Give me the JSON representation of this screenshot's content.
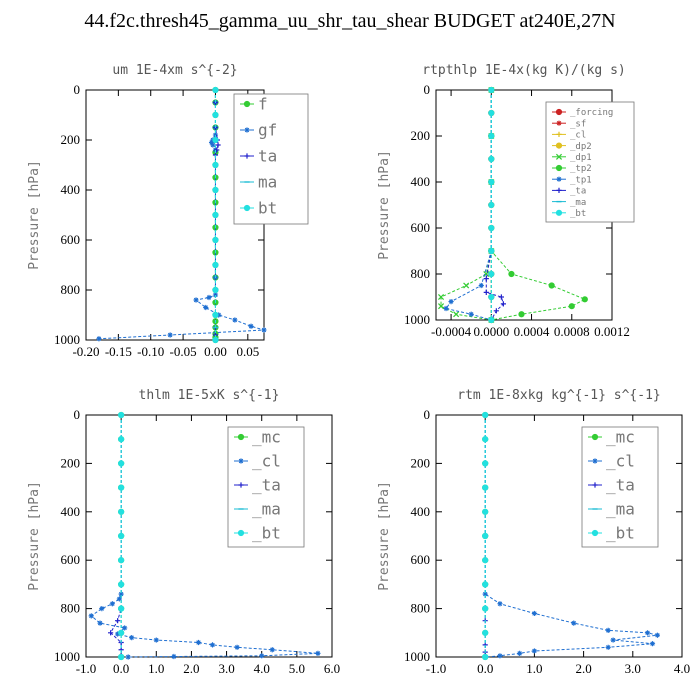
{
  "title": "44.f2c.thresh45_gamma_uu_shr_tau_shear  BUDGET at240E,27N",
  "chart_data": [
    {
      "type": "line",
      "title": "um  1E-4xm s^{-2}",
      "ylabel": "Pressure [hPa]",
      "xlim": [
        -0.2,
        0.075
      ],
      "ylim": [
        1000,
        0
      ],
      "xticks": [
        -0.2,
        -0.15,
        -0.1,
        -0.05,
        0.0,
        0.05
      ],
      "xtick_labels": [
        "-0.20",
        "-0.15",
        "-0.10",
        "-0.05",
        "0.00",
        "0.05"
      ],
      "yticks": [
        0,
        200,
        400,
        600,
        800,
        1000
      ],
      "grid": false,
      "legend_position": "top-right",
      "series": [
        {
          "name": "f",
          "color": "#33cc33",
          "marker": "o",
          "x": [
            0,
            0,
            0,
            0,
            0,
            0,
            0,
            0,
            0,
            0,
            0,
            0,
            0,
            0,
            0,
            0,
            0,
            0,
            0,
            0,
            0,
            0,
            0,
            0
          ],
          "y": [
            0,
            50,
            100,
            150,
            200,
            250,
            300,
            350,
            400,
            450,
            500,
            550,
            600,
            650,
            700,
            750,
            800,
            850,
            900,
            925,
            950,
            975,
            990,
            1000
          ]
        },
        {
          "name": "gf",
          "color": "#1f6fd1",
          "marker": "*",
          "x": [
            0,
            0,
            0,
            0,
            0,
            -0.004,
            -0.006,
            -0.004,
            0,
            0,
            0,
            0,
            0,
            0,
            0,
            0,
            0,
            -0.01,
            -0.03,
            -0.015,
            0.005,
            0.03,
            0.055,
            0.075,
            -0.07,
            -0.18
          ],
          "y": [
            0,
            50,
            100,
            150,
            180,
            200,
            210,
            220,
            240,
            300,
            400,
            500,
            600,
            700,
            750,
            800,
            820,
            830,
            840,
            870,
            900,
            920,
            945,
            960,
            980,
            995
          ]
        },
        {
          "name": "ta",
          "color": "#2222cc",
          "marker": "+",
          "x": [
            0,
            0,
            0,
            0,
            0.003,
            0.004,
            0.002,
            0,
            0,
            0,
            0,
            0,
            0,
            0,
            0,
            0,
            0,
            0
          ],
          "y": [
            0,
            50,
            100,
            150,
            200,
            220,
            240,
            260,
            300,
            400,
            500,
            600,
            700,
            800,
            900,
            950,
            980,
            1000
          ]
        },
        {
          "name": "ma",
          "color": "#1abcd4",
          "marker": "-",
          "x": [
            0,
            0,
            0,
            0,
            0,
            0,
            0,
            0,
            0,
            0,
            0,
            0
          ],
          "y": [
            0,
            100,
            200,
            300,
            400,
            500,
            600,
            700,
            800,
            900,
            950,
            1000
          ]
        },
        {
          "name": "bt",
          "color": "#22e0e0",
          "marker": "o",
          "x": [
            0,
            0,
            0,
            0,
            0,
            0,
            0,
            0,
            0,
            0,
            0
          ],
          "y": [
            0,
            100,
            200,
            300,
            400,
            500,
            600,
            700,
            800,
            900,
            1000
          ]
        }
      ]
    },
    {
      "type": "line",
      "title": "rtpthlp  1E-4x(kg K)/(kg s)",
      "ylabel": "Pressure [hPa]",
      "xlim": [
        -0.00055,
        0.0012
      ],
      "ylim": [
        1000,
        0
      ],
      "xticks": [
        -0.0004,
        0.0,
        0.0004,
        0.0008,
        0.0012
      ],
      "xtick_labels": [
        "-0.0004",
        "0.0000",
        "0.0004",
        "0.0008",
        "0.0012"
      ],
      "yticks": [
        0,
        200,
        400,
        600,
        800,
        1000
      ],
      "grid": false,
      "legend_position": "top-right",
      "series": [
        {
          "name": "_forcing",
          "color": "#cc2222",
          "marker": "o",
          "x": [
            0,
            0,
            0,
            0,
            0,
            0,
            0,
            0,
            0,
            0,
            0
          ],
          "y": [
            0,
            100,
            200,
            300,
            400,
            500,
            600,
            700,
            800,
            900,
            1000
          ]
        },
        {
          "name": "_sf",
          "color": "#cc2222",
          "marker": "*",
          "x": [
            0,
            0,
            0,
            0,
            0,
            0,
            0,
            0,
            0,
            0,
            0
          ],
          "y": [
            0,
            100,
            200,
            300,
            400,
            500,
            600,
            700,
            800,
            900,
            1000
          ]
        },
        {
          "name": "_cl",
          "color": "#e0c020",
          "marker": "+",
          "x": [
            0,
            0,
            0,
            0,
            0,
            0,
            0,
            0,
            0,
            0,
            0
          ],
          "y": [
            0,
            100,
            200,
            300,
            400,
            500,
            600,
            700,
            800,
            900,
            1000
          ]
        },
        {
          "name": "_dp2",
          "color": "#e0c020",
          "marker": "o",
          "x": [
            0,
            0,
            0,
            0,
            0,
            0,
            0,
            0,
            0,
            0,
            0
          ],
          "y": [
            0,
            100,
            200,
            300,
            400,
            500,
            600,
            700,
            800,
            900,
            1000
          ]
        },
        {
          "name": "_dp1",
          "color": "#33cc33",
          "marker": "x",
          "x": [
            0,
            0,
            0,
            0,
            -5e-05,
            -0.00025,
            -0.0005,
            -0.0005,
            -0.00035,
            0
          ],
          "y": [
            0,
            200,
            400,
            700,
            800,
            850,
            900,
            940,
            975,
            1000
          ]
        },
        {
          "name": "_tp2",
          "color": "#33cc33",
          "marker": "o",
          "x": [
            0,
            0,
            0,
            0,
            0.0002,
            0.0006,
            0.00093,
            0.0008,
            0.0003,
            0
          ],
          "y": [
            0,
            200,
            400,
            700,
            800,
            850,
            910,
            940,
            975,
            1000
          ]
        },
        {
          "name": "_tp1",
          "color": "#1f6fd1",
          "marker": "*",
          "x": [
            0,
            0,
            0,
            0,
            -0.0001,
            -0.0004,
            -0.00045,
            -0.0002,
            0
          ],
          "y": [
            0,
            200,
            400,
            700,
            850,
            920,
            950,
            975,
            1000
          ]
        },
        {
          "name": "_ta",
          "color": "#2222cc",
          "marker": "+",
          "x": [
            0,
            0,
            0,
            0,
            -5e-05,
            -5e-05,
            0.0001,
            0.00012,
            5e-05,
            0
          ],
          "y": [
            0,
            200,
            400,
            700,
            820,
            880,
            900,
            930,
            960,
            1000
          ]
        },
        {
          "name": "_ma",
          "color": "#1abcd4",
          "marker": "-",
          "x": [
            0,
            0,
            0,
            0,
            0,
            0,
            0,
            0,
            0,
            0,
            0
          ],
          "y": [
            0,
            100,
            200,
            300,
            400,
            500,
            600,
            700,
            800,
            900,
            1000
          ]
        },
        {
          "name": "_bt",
          "color": "#22e0e0",
          "marker": "o",
          "x": [
            0,
            0,
            0,
            0,
            0,
            0,
            0,
            0,
            0,
            0,
            0
          ],
          "y": [
            0,
            100,
            200,
            300,
            400,
            500,
            600,
            700,
            800,
            900,
            1000
          ]
        }
      ]
    },
    {
      "type": "line",
      "title": "thlm  1E-5xK s^{-1}",
      "ylabel": "Pressure [hPa]",
      "xlim": [
        -1.0,
        6.0
      ],
      "ylim": [
        1000,
        0
      ],
      "xticks": [
        -1,
        0,
        1,
        2,
        3,
        4,
        5,
        6
      ],
      "xtick_labels": [
        "-1.0",
        "0.0",
        "1.0",
        "2.0",
        "3.0",
        "4.0",
        "5.0",
        "6.0"
      ],
      "yticks": [
        0,
        200,
        400,
        600,
        800,
        1000
      ],
      "grid": false,
      "legend_position": "top-right",
      "series": [
        {
          "name": "_mc",
          "color": "#33cc33",
          "marker": "o",
          "x": [
            0,
            0,
            0,
            0,
            0,
            0,
            0,
            0,
            0,
            0,
            0
          ],
          "y": [
            0,
            100,
            200,
            300,
            400,
            500,
            600,
            700,
            800,
            900,
            1000
          ]
        },
        {
          "name": "_cl",
          "color": "#1f6fd1",
          "marker": "*",
          "x": [
            0,
            0,
            0,
            0,
            0,
            -0.05,
            -0.25,
            -0.55,
            -0.85,
            -0.6,
            0.1,
            -0.1,
            0.3,
            1.0,
            2.2,
            2.6,
            3.3,
            4.3,
            5.6,
            4.0,
            1.5,
            0.2
          ],
          "y": [
            0,
            200,
            400,
            600,
            740,
            760,
            780,
            800,
            830,
            860,
            880,
            905,
            920,
            930,
            940,
            950,
            960,
            970,
            985,
            995,
            998,
            1000
          ]
        },
        {
          "name": "_ta",
          "color": "#2222cc",
          "marker": "+",
          "x": [
            0,
            0,
            0,
            0,
            0,
            -0.1,
            -0.3,
            0,
            0,
            0
          ],
          "y": [
            0,
            200,
            400,
            600,
            800,
            850,
            900,
            940,
            970,
            1000
          ]
        },
        {
          "name": "_ma",
          "color": "#1abcd4",
          "marker": "-",
          "x": [
            0,
            0,
            0,
            0,
            0,
            0,
            0,
            0,
            0,
            0,
            0
          ],
          "y": [
            0,
            100,
            200,
            300,
            400,
            500,
            600,
            700,
            800,
            900,
            1000
          ]
        },
        {
          "name": "_bt",
          "color": "#22e0e0",
          "marker": "o",
          "x": [
            0,
            0,
            0,
            0,
            0,
            0,
            0,
            0,
            0,
            0,
            0
          ],
          "y": [
            0,
            100,
            200,
            300,
            400,
            500,
            600,
            700,
            800,
            900,
            1000
          ]
        }
      ]
    },
    {
      "type": "line",
      "title": "rtm  1E-8xkg kg^{-1} s^{-1}",
      "ylabel": "Pressure [hPa]",
      "xlim": [
        -1.0,
        4.0
      ],
      "ylim": [
        1000,
        0
      ],
      "xticks": [
        -1,
        0,
        1,
        2,
        3,
        4
      ],
      "xtick_labels": [
        "-1.0",
        "0.0",
        "1.0",
        "2.0",
        "3.0",
        "4.0"
      ],
      "yticks": [
        0,
        200,
        400,
        600,
        800,
        1000
      ],
      "grid": false,
      "legend_position": "top-right",
      "series": [
        {
          "name": "_mc",
          "color": "#33cc33",
          "marker": "o",
          "x": [
            0,
            0,
            0,
            0,
            0,
            0,
            0,
            0,
            0,
            0,
            0
          ],
          "y": [
            0,
            100,
            200,
            300,
            400,
            500,
            600,
            700,
            800,
            900,
            1000
          ]
        },
        {
          "name": "_cl",
          "color": "#1f6fd1",
          "marker": "*",
          "x": [
            0,
            0,
            0,
            0,
            0,
            0.3,
            1.0,
            1.8,
            2.5,
            3.3,
            3.5,
            2.6,
            3.4,
            2.5,
            1.0,
            0.7,
            0.3,
            0
          ],
          "y": [
            0,
            200,
            400,
            600,
            740,
            780,
            820,
            860,
            890,
            900,
            910,
            930,
            945,
            960,
            975,
            985,
            995,
            1000
          ]
        },
        {
          "name": "_ta",
          "color": "#2222cc",
          "marker": "+",
          "x": [
            0,
            0,
            0,
            0,
            0,
            0,
            0,
            0,
            0,
            0
          ],
          "y": [
            0,
            200,
            400,
            600,
            800,
            850,
            900,
            950,
            980,
            1000
          ]
        },
        {
          "name": "_ma",
          "color": "#1abcd4",
          "marker": "-",
          "x": [
            0,
            0,
            0,
            0,
            0,
            0,
            0,
            0,
            0,
            0,
            0
          ],
          "y": [
            0,
            100,
            200,
            300,
            400,
            500,
            600,
            700,
            800,
            900,
            1000
          ]
        },
        {
          "name": "_bt",
          "color": "#22e0e0",
          "marker": "o",
          "x": [
            0,
            0,
            0,
            0,
            0,
            0,
            0,
            0,
            0,
            0,
            0
          ],
          "y": [
            0,
            100,
            200,
            300,
            400,
            500,
            600,
            700,
            800,
            900,
            1000
          ]
        }
      ]
    }
  ]
}
